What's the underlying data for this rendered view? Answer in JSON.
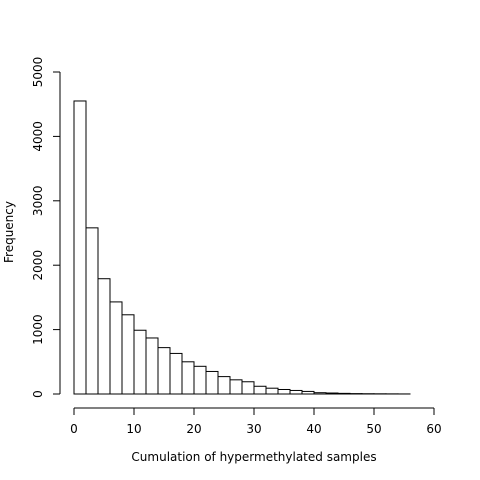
{
  "chart_data": {
    "type": "bar",
    "subtype": "histogram",
    "title": "",
    "xlabel": "Cumulation of hypermethylated samples",
    "ylabel": "Frequency",
    "xlim": [
      0,
      60
    ],
    "ylim": [
      0,
      5000
    ],
    "x_ticks": [
      0,
      10,
      20,
      30,
      40,
      50,
      60
    ],
    "y_ticks": [
      0,
      1000,
      2000,
      3000,
      4000,
      5000
    ],
    "bin_width": 2,
    "bin_edges": [
      0,
      2,
      4,
      6,
      8,
      10,
      12,
      14,
      16,
      18,
      20,
      22,
      24,
      26,
      28,
      30,
      32,
      34,
      36,
      38,
      40,
      42,
      44,
      46,
      48,
      50,
      52,
      54,
      56
    ],
    "values": [
      4550,
      2580,
      1790,
      1430,
      1230,
      990,
      870,
      720,
      630,
      500,
      430,
      350,
      270,
      220,
      190,
      120,
      90,
      70,
      55,
      40,
      20,
      15,
      10,
      6,
      4,
      3,
      2,
      1
    ],
    "grid": false,
    "legend": "none"
  }
}
